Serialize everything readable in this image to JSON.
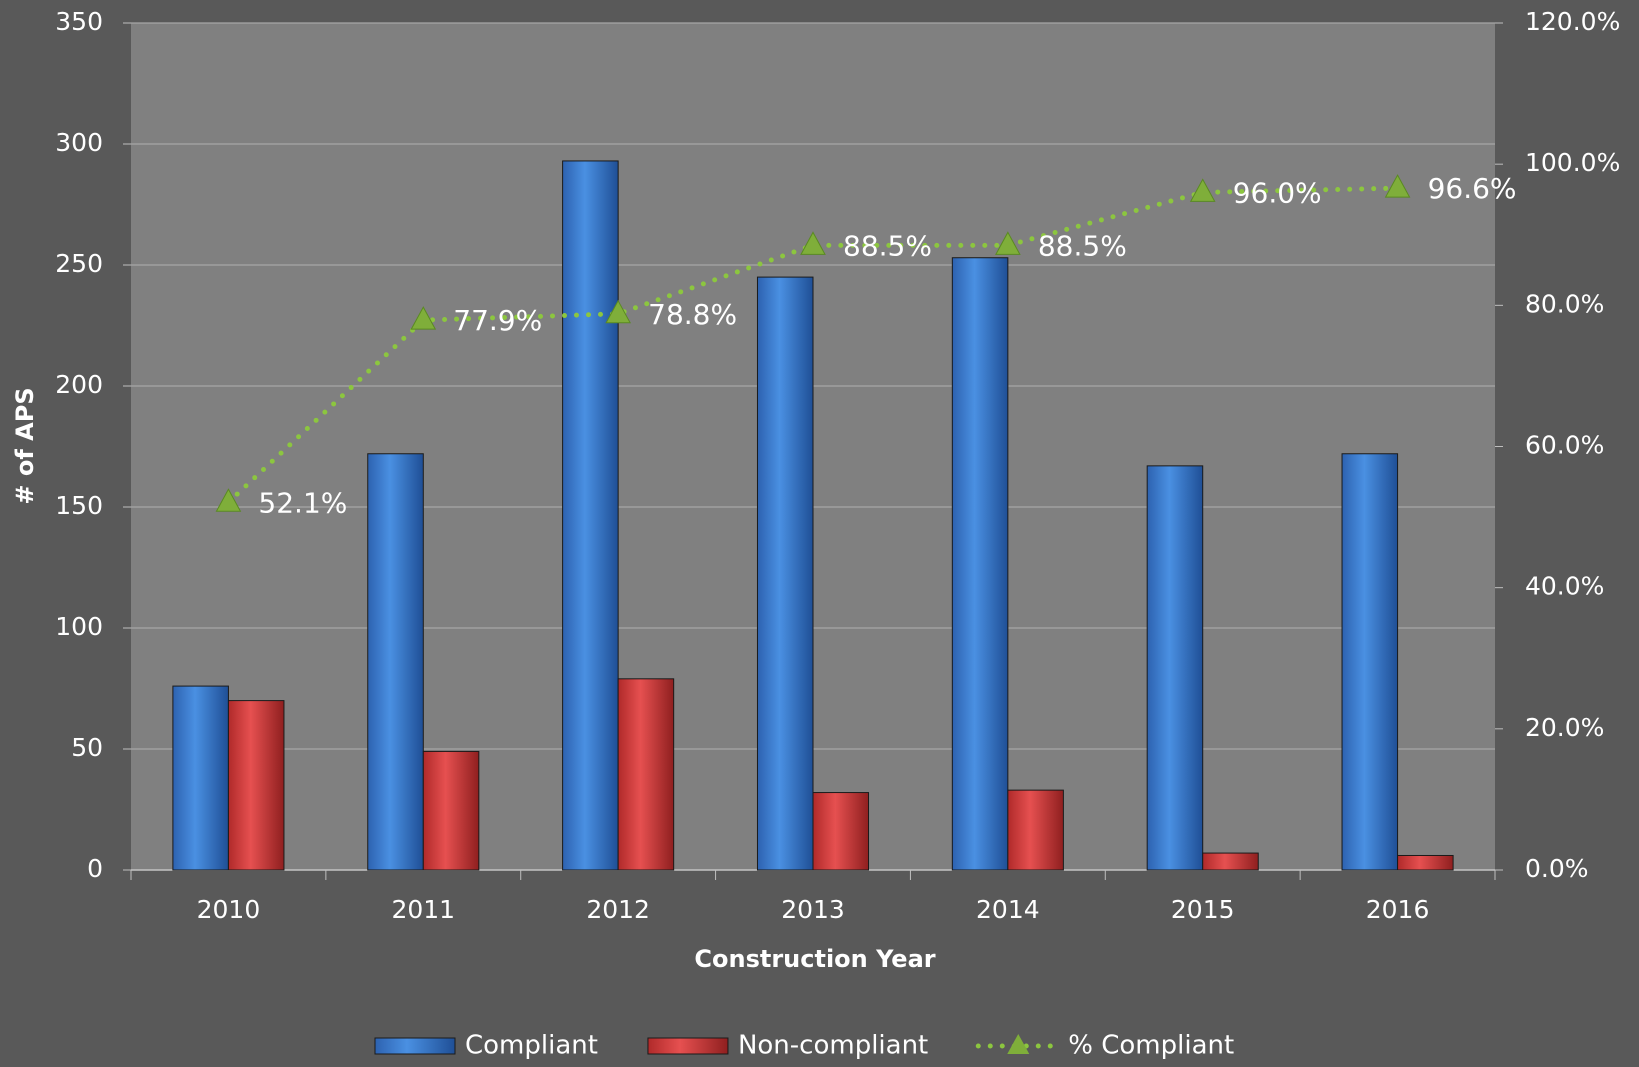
{
  "chart_data": {
    "type": "bar",
    "x_label": "Construction Year",
    "y_label": "# of APS",
    "categories": [
      "2010",
      "2011",
      "2012",
      "2013",
      "2014",
      "2015",
      "2016"
    ],
    "series": [
      {
        "name": "Compliant",
        "color": "#3a7bd5",
        "values": [
          76,
          172,
          293,
          245,
          253,
          167,
          172
        ]
      },
      {
        "name": "Non-compliant",
        "color": "#d63a3a",
        "values": [
          70,
          49,
          79,
          32,
          33,
          7,
          6
        ]
      },
      {
        "name": "% Compliant",
        "color": "#8cc63f",
        "axis": "y2",
        "type": "line",
        "values": [
          52.1,
          77.9,
          78.8,
          88.5,
          88.5,
          96.0,
          96.6
        ],
        "value_labels": [
          "52.1%",
          "77.9%",
          "78.8%",
          "88.5%",
          "88.5%",
          "96.0%",
          "96.6%"
        ]
      }
    ],
    "ylim": [
      0,
      350
    ],
    "yticks": [
      0,
      50,
      100,
      150,
      200,
      250,
      300,
      350
    ],
    "y2lim": [
      0,
      120
    ],
    "y2ticks": [
      {
        "value": 0,
        "label": "0.0%"
      },
      {
        "value": 20,
        "label": "20.0%"
      },
      {
        "value": 40,
        "label": "40.0%"
      },
      {
        "value": 60,
        "label": "60.0%"
      },
      {
        "value": 80,
        "label": "80.0%"
      },
      {
        "value": 100,
        "label": "100.0%"
      },
      {
        "value": 120,
        "label": "120.0%"
      }
    ],
    "grid": true,
    "legend": "bottom"
  }
}
